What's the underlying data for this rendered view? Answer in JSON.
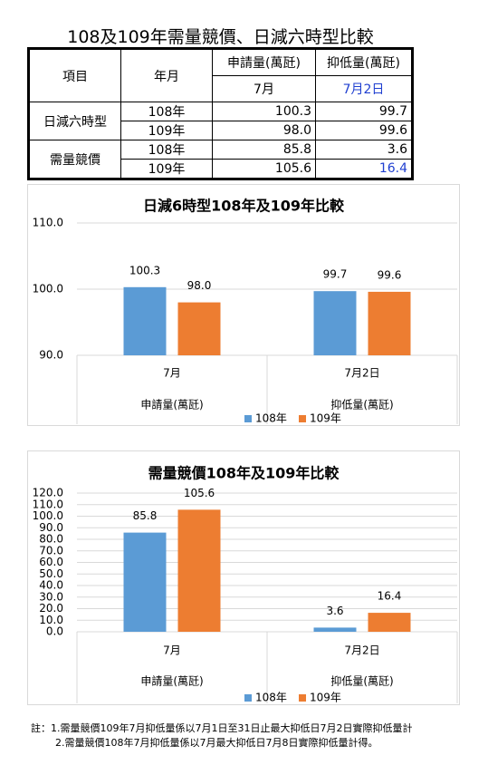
{
  "title": "108及109年需量競價、日減六時型比較",
  "table": {
    "header": [
      "項目",
      "年月",
      "申請量(萬瓩)",
      "抑低量(萬瓩)"
    ],
    "subheader": [
      "7月",
      "7月2日"
    ],
    "groups": [
      {
        "label": "日減六時型",
        "rows": [
          [
            "108年",
            "100.3",
            "99.7"
          ],
          [
            "109年",
            "98.0",
            "99.6"
          ]
        ]
      },
      {
        "label": "需量競價",
        "rows": [
          [
            "108年",
            "85.8",
            "3.6"
          ],
          [
            "109年",
            "105.6",
            "16.4"
          ]
        ]
      }
    ]
  },
  "chart_data": [
    {
      "type": "bar",
      "title": "日減6時型108年及109年比較",
      "categories": [
        "7月",
        "7月2日"
      ],
      "category_groups": [
        "申請量(萬瓩)",
        "抑低量(萬瓩)"
      ],
      "series": [
        {
          "name": "108年",
          "color": "#5b9bd5",
          "values": [
            100.3,
            99.7
          ]
        },
        {
          "name": "109年",
          "color": "#ed7d31",
          "values": [
            98.0,
            99.6
          ],
          "value_labels": [
            "98.0",
            "99.6"
          ]
        }
      ],
      "ylim": [
        90,
        110
      ],
      "yticks": [
        {
          "value": 90,
          "label": "90.0"
        },
        {
          "value": 100,
          "label": "100.0"
        },
        {
          "value": 110,
          "label": "110.0"
        }
      ],
      "grid": true
    },
    {
      "type": "bar",
      "title": "需量競價108年及109年比較",
      "categories": [
        "7月",
        "7月2日"
      ],
      "category_groups": [
        "申請量(萬瓩)",
        "抑低量(萬瓩)"
      ],
      "series": [
        {
          "name": "108年",
          "color": "#5b9bd5",
          "values": [
            85.8,
            3.6
          ]
        },
        {
          "name": "109年",
          "color": "#ed7d31",
          "values": [
            105.6,
            16.4
          ]
        }
      ],
      "ylim": [
        0,
        120
      ],
      "yticks": [
        {
          "value": 0,
          "label": "0.0"
        },
        {
          "value": 10,
          "label": "10.0"
        },
        {
          "value": 20,
          "label": "20.0"
        },
        {
          "value": 30,
          "label": "30.0"
        },
        {
          "value": 40,
          "label": "40.0"
        },
        {
          "value": 50,
          "label": "50.0"
        },
        {
          "value": 60,
          "label": "60.0"
        },
        {
          "value": 70,
          "label": "70.0"
        },
        {
          "value": 80,
          "label": "80.0"
        },
        {
          "value": 90,
          "label": "90.0"
        },
        {
          "value": 100,
          "label": "100.0"
        },
        {
          "value": 110,
          "label": "110.0"
        },
        {
          "value": 120,
          "label": "120.0"
        }
      ],
      "grid": true
    }
  ],
  "notes": [
    "註：1.需量競價109年7月抑低量係以7月1日至31日止最大抑低日7月2日實際抑低量計",
    "2.需量競價108年7月抑低量係以7月最大抑低日7月8日實際抑低量計得。"
  ]
}
